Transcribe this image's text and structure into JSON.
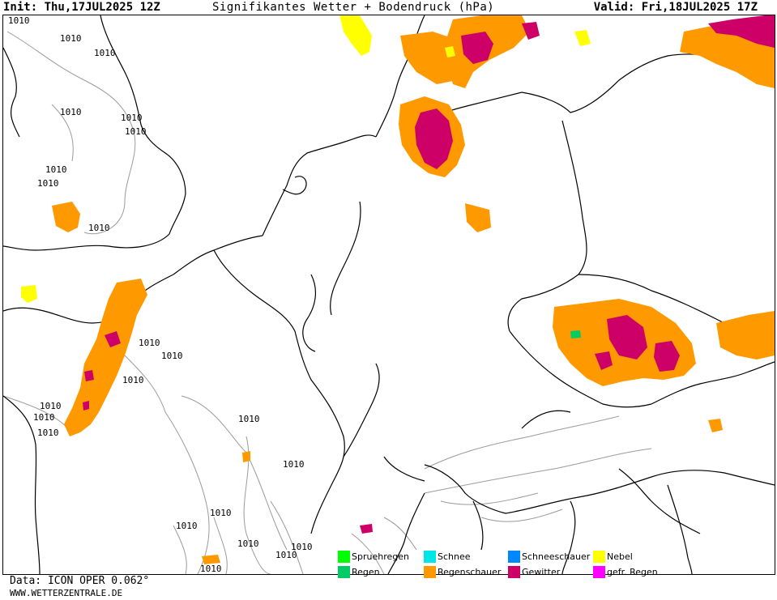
{
  "header": {
    "init": "Init: Thu,17JUL2025 12Z",
    "title": "Signifikantes Wetter + Bodendruck (hPa)",
    "valid": "Valid: Fri,18JUL2025 17Z"
  },
  "isobar_label": "1010",
  "legend": {
    "items": [
      {
        "label": "Spruehregen",
        "color": "#00ff00"
      },
      {
        "label": "Regen",
        "color": "#00cc66"
      },
      {
        "label": "Schnee",
        "color": "#00e5e5"
      },
      {
        "label": "Regenschauer",
        "color": "#ff9900"
      },
      {
        "label": "Schneeschauer",
        "color": "#0088ff"
      },
      {
        "label": "Gewitter",
        "color": "#cc0066"
      },
      {
        "label": "Nebel",
        "color": "#ffff00"
      },
      {
        "label": "gefr. Regen",
        "color": "#ff00ff"
      }
    ]
  },
  "footer": {
    "data_source": "Data: ICON OPER 0.062°",
    "website": "WWW.WETTERZENTRALE.DE"
  },
  "colors": {
    "showers": "#ff9900",
    "thunderstorm": "#cc0066",
    "fog": "#ffff00",
    "rain": "#00cc66",
    "isobar": "#9a9a9a",
    "coast": "#000000"
  }
}
